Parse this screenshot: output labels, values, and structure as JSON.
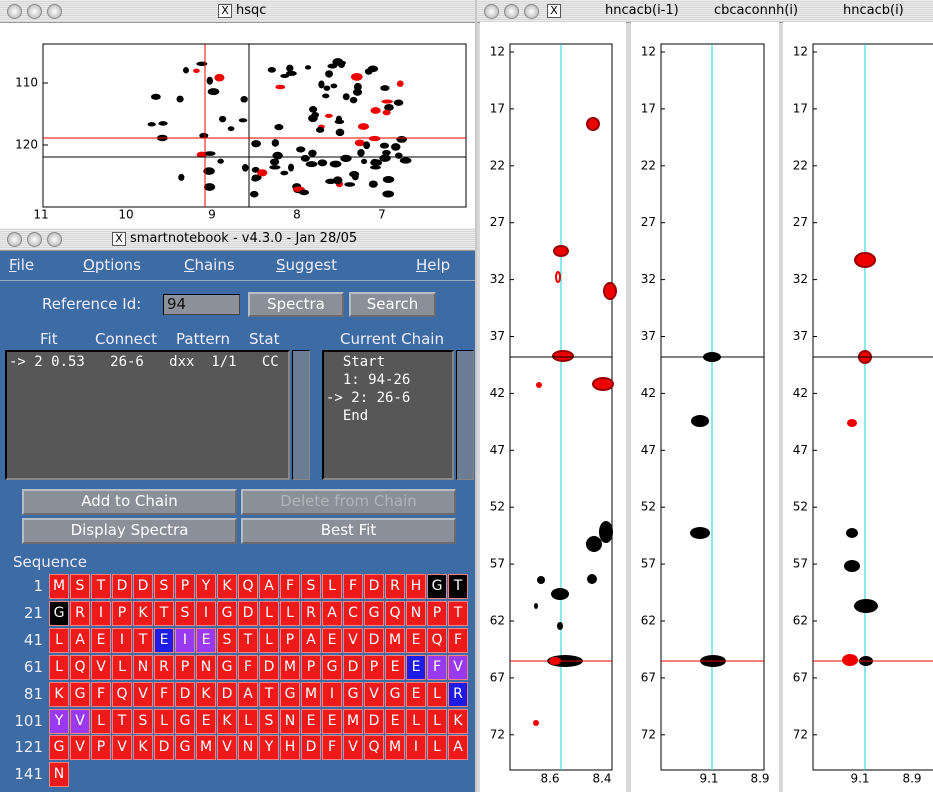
{
  "hsqc": {
    "title": "hsqc",
    "y_ticks": [
      "110",
      "120"
    ],
    "x_ticks": [
      "11",
      "10",
      "9",
      "8",
      "7"
    ]
  },
  "notebook": {
    "title": "smartnotebook - v4.3.0 - Jan 28/05",
    "menu": [
      "File",
      "Options",
      "Chains",
      "Suggest",
      "Help"
    ],
    "reference_label": "Reference Id:",
    "reference_id": "94",
    "top_buttons": [
      "Spectra",
      "Search"
    ],
    "fit_headers": [
      "Fit",
      "Connect",
      "Pattern",
      "Stat"
    ],
    "chain_header": "Current Chain",
    "fit_rows": [
      "-> 2 0.53   26-6   dxx  1/1   CC"
    ],
    "chain_rows": [
      "  Start",
      "  1: 94-26",
      "-> 2: 26-6",
      "  End"
    ],
    "buttons": [
      "Add to Chain",
      "Delete from Chain",
      "Display Spectra",
      "Best Fit"
    ],
    "sequence_label": "Sequence",
    "cell_colors": {
      "red": "#ee1a1a",
      "black": "#000000",
      "blue": "#1c1ce6",
      "purple": "#9a3af0"
    },
    "sequence": [
      {
        "start": "1",
        "residues": [
          "M",
          "S",
          "T",
          "D",
          "D",
          "S",
          "P",
          "Y",
          "K",
          "Q",
          "A",
          "F",
          "S",
          "L",
          "F",
          "D",
          "R",
          "H",
          "G",
          "T"
        ],
        "highlight": {
          "18": "black",
          "19": "black"
        }
      },
      {
        "start": "21",
        "residues": [
          "G",
          "R",
          "I",
          "P",
          "K",
          "T",
          "S",
          "I",
          "G",
          "D",
          "L",
          "L",
          "R",
          "A",
          "C",
          "G",
          "Q",
          "N",
          "P",
          "T"
        ],
        "highlight": {
          "0": "black"
        }
      },
      {
        "start": "41",
        "residues": [
          "L",
          "A",
          "E",
          "I",
          "T",
          "E",
          "I",
          "E",
          "S",
          "T",
          "L",
          "P",
          "A",
          "E",
          "V",
          "D",
          "M",
          "E",
          "Q",
          "F"
        ],
        "highlight": {
          "5": "blue",
          "6": "purple",
          "7": "purple"
        }
      },
      {
        "start": "61",
        "residues": [
          "L",
          "Q",
          "V",
          "L",
          "N",
          "R",
          "P",
          "N",
          "G",
          "F",
          "D",
          "M",
          "P",
          "G",
          "D",
          "P",
          "E",
          "E",
          "F",
          "V"
        ],
        "highlight": {
          "17": "blue",
          "18": "purple",
          "19": "purple"
        }
      },
      {
        "start": "81",
        "residues": [
          "K",
          "G",
          "F",
          "Q",
          "V",
          "F",
          "D",
          "K",
          "D",
          "A",
          "T",
          "G",
          "M",
          "I",
          "G",
          "V",
          "G",
          "E",
          "L",
          "R"
        ],
        "highlight": {
          "19": "blue"
        }
      },
      {
        "start": "101",
        "residues": [
          "Y",
          "V",
          "L",
          "T",
          "S",
          "L",
          "G",
          "E",
          "K",
          "L",
          "S",
          "N",
          "E",
          "E",
          "M",
          "D",
          "E",
          "L",
          "L",
          "K"
        ],
        "highlight": {
          "0": "purple",
          "1": "purple"
        }
      },
      {
        "start": "121",
        "residues": [
          "G",
          "V",
          "P",
          "V",
          "K",
          "D",
          "G",
          "M",
          "V",
          "N",
          "Y",
          "H",
          "D",
          "F",
          "V",
          "Q",
          "M",
          "I",
          "L",
          "A"
        ],
        "highlight": {}
      },
      {
        "start": "141",
        "residues": [
          "N"
        ],
        "highlight": {}
      }
    ]
  },
  "strips": {
    "labels": [
      "hncacb(i-1)",
      "cbcaconnh(i)",
      "hncacb(i)"
    ],
    "y_ticks": [
      "12",
      "17",
      "22",
      "27",
      "32",
      "37",
      "42",
      "47",
      "52",
      "57",
      "62",
      "67",
      "72"
    ],
    "x_ticks": [
      [
        "8.6",
        "8.4"
      ],
      [
        "9.1",
        "8.9"
      ],
      [
        "9.1",
        "8.9"
      ]
    ]
  }
}
